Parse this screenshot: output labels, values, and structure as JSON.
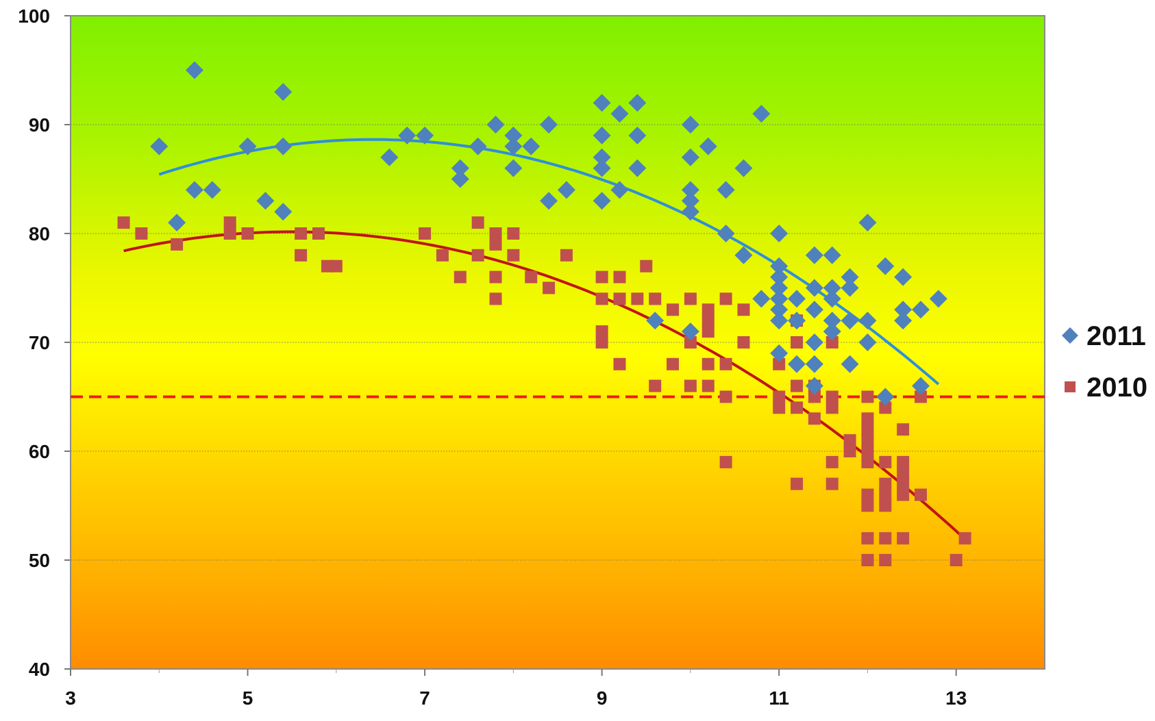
{
  "chart_data": {
    "type": "scatter",
    "title": "",
    "xlabel": "",
    "ylabel": "",
    "xlim": [
      3,
      14
    ],
    "ylim": [
      40,
      100
    ],
    "x_ticks": [
      "3",
      "5",
      "7",
      "9",
      "11",
      "13"
    ],
    "y_ticks": [
      "40",
      "50",
      "60",
      "70",
      "80",
      "90",
      "100"
    ],
    "grid": "horizontal",
    "background": "vertical gradient green (top) to yellow to orange (bottom)",
    "legend_position": "right",
    "reference_line": {
      "y": 65,
      "style": "dashed",
      "color": "#ee1c1c"
    },
    "series": [
      {
        "name": "2011",
        "marker": "diamond",
        "color": "#4f81bd",
        "trend_color": "#2f8fd8",
        "trendline": {
          "type": "polynomial",
          "order": 2,
          "x_range": [
            4,
            12.8
          ],
          "points": [
            [
              4,
              85.3
            ],
            [
              6.5,
              88.8
            ],
            [
              9,
              85.3
            ],
            [
              11,
              76.3
            ],
            [
              12.8,
              66.5
            ]
          ]
        },
        "points": [
          [
            4,
            88
          ],
          [
            4.2,
            81
          ],
          [
            4.4,
            95
          ],
          [
            4.4,
            84
          ],
          [
            4.6,
            84
          ],
          [
            5,
            88
          ],
          [
            5.2,
            83
          ],
          [
            5.4,
            93
          ],
          [
            5.4,
            88
          ],
          [
            5.4,
            82
          ],
          [
            6.6,
            87
          ],
          [
            6.8,
            89
          ],
          [
            7,
            89
          ],
          [
            7.4,
            86
          ],
          [
            7.4,
            85
          ],
          [
            7.6,
            88
          ],
          [
            7.8,
            90
          ],
          [
            8,
            89
          ],
          [
            8,
            88
          ],
          [
            8,
            86
          ],
          [
            8.2,
            88
          ],
          [
            8.4,
            90
          ],
          [
            8.4,
            83
          ],
          [
            8.6,
            84
          ],
          [
            9,
            92
          ],
          [
            9,
            89
          ],
          [
            9,
            87
          ],
          [
            9,
            86
          ],
          [
            9,
            83
          ],
          [
            9.2,
            91
          ],
          [
            9.2,
            84
          ],
          [
            9.4,
            92
          ],
          [
            9.4,
            89
          ],
          [
            9.4,
            86
          ],
          [
            9.6,
            72
          ],
          [
            10,
            90
          ],
          [
            10,
            87
          ],
          [
            10,
            84
          ],
          [
            10,
            83
          ],
          [
            10,
            82
          ],
          [
            10,
            71
          ],
          [
            10.2,
            88
          ],
          [
            10.4,
            84
          ],
          [
            10.4,
            80
          ],
          [
            10.6,
            86
          ],
          [
            10.6,
            78
          ],
          [
            10.8,
            91
          ],
          [
            10.8,
            74
          ],
          [
            11,
            80
          ],
          [
            11,
            77
          ],
          [
            11,
            76
          ],
          [
            11,
            75
          ],
          [
            11,
            74
          ],
          [
            11,
            73
          ],
          [
            11,
            72
          ],
          [
            11,
            69
          ],
          [
            11.2,
            74
          ],
          [
            11.2,
            72
          ],
          [
            11.2,
            68
          ],
          [
            11.4,
            78
          ],
          [
            11.4,
            75
          ],
          [
            11.4,
            73
          ],
          [
            11.4,
            70
          ],
          [
            11.4,
            68
          ],
          [
            11.4,
            66
          ],
          [
            11.6,
            78
          ],
          [
            11.6,
            75
          ],
          [
            11.6,
            74
          ],
          [
            11.6,
            72
          ],
          [
            11.6,
            71
          ],
          [
            11.8,
            76
          ],
          [
            11.8,
            75
          ],
          [
            11.8,
            72
          ],
          [
            11.8,
            68
          ],
          [
            12,
            81
          ],
          [
            12,
            72
          ],
          [
            12,
            70
          ],
          [
            12.2,
            77
          ],
          [
            12.2,
            65
          ],
          [
            12.4,
            76
          ],
          [
            12.4,
            73
          ],
          [
            12.4,
            72
          ],
          [
            12.6,
            73
          ],
          [
            12.6,
            66
          ],
          [
            12.8,
            74
          ]
        ]
      },
      {
        "name": "2010",
        "marker": "square",
        "color": "#c0504d",
        "trend_color": "#c0141c",
        "trendline": {
          "type": "polynomial",
          "order": 2,
          "x_range": [
            3.6,
            13.1
          ],
          "points": [
            [
              3.6,
              78.4
            ],
            [
              5.5,
              80.1
            ],
            [
              8,
              77.3
            ],
            [
              10,
              70.1
            ],
            [
              11.5,
              62.5
            ],
            [
              13.1,
              52
            ]
          ]
        },
        "points": [
          [
            3.6,
            81
          ],
          [
            3.8,
            80
          ],
          [
            4.2,
            79
          ],
          [
            4.8,
            81
          ],
          [
            4.8,
            80
          ],
          [
            5,
            80
          ],
          [
            5.6,
            80
          ],
          [
            5.6,
            78
          ],
          [
            5.8,
            80
          ],
          [
            5.9,
            77
          ],
          [
            6,
            77
          ],
          [
            7,
            80
          ],
          [
            7.2,
            78
          ],
          [
            7.4,
            76
          ],
          [
            7.6,
            81
          ],
          [
            7.6,
            78
          ],
          [
            7.8,
            80
          ],
          [
            7.8,
            79
          ],
          [
            7.8,
            76
          ],
          [
            7.8,
            74
          ],
          [
            8,
            80
          ],
          [
            8,
            78
          ],
          [
            8.2,
            76
          ],
          [
            8.4,
            75
          ],
          [
            8.6,
            78
          ],
          [
            9,
            76
          ],
          [
            9,
            74
          ],
          [
            9,
            71
          ],
          [
            9,
            70
          ],
          [
            9.2,
            76
          ],
          [
            9.2,
            74
          ],
          [
            9.2,
            68
          ],
          [
            9.4,
            74
          ],
          [
            9.5,
            77
          ],
          [
            9.6,
            74
          ],
          [
            9.6,
            66
          ],
          [
            9.8,
            73
          ],
          [
            9.8,
            68
          ],
          [
            10,
            74
          ],
          [
            10,
            70
          ],
          [
            10,
            66
          ],
          [
            10.2,
            73
          ],
          [
            10.2,
            72
          ],
          [
            10.2,
            71
          ],
          [
            10.2,
            68
          ],
          [
            10.2,
            66
          ],
          [
            10.4,
            74
          ],
          [
            10.4,
            68
          ],
          [
            10.4,
            65
          ],
          [
            10.4,
            59
          ],
          [
            10.6,
            73
          ],
          [
            10.6,
            70
          ],
          [
            11,
            68
          ],
          [
            11,
            65
          ],
          [
            11,
            64
          ],
          [
            11.2,
            72
          ],
          [
            11.2,
            70
          ],
          [
            11.2,
            66
          ],
          [
            11.2,
            64
          ],
          [
            11.2,
            57
          ],
          [
            11.4,
            66
          ],
          [
            11.4,
            65
          ],
          [
            11.4,
            63
          ],
          [
            11.6,
            70
          ],
          [
            11.6,
            65
          ],
          [
            11.6,
            64
          ],
          [
            11.6,
            59
          ],
          [
            11.6,
            57
          ],
          [
            11.8,
            61
          ],
          [
            11.8,
            60
          ],
          [
            12,
            65
          ],
          [
            12,
            63
          ],
          [
            12,
            62
          ],
          [
            12,
            61
          ],
          [
            12,
            60
          ],
          [
            12,
            59
          ],
          [
            12,
            56
          ],
          [
            12,
            55
          ],
          [
            12,
            52
          ],
          [
            12,
            50
          ],
          [
            12.2,
            64
          ],
          [
            12.2,
            59
          ],
          [
            12.2,
            57
          ],
          [
            12.2,
            56
          ],
          [
            12.2,
            55
          ],
          [
            12.2,
            52
          ],
          [
            12.2,
            50
          ],
          [
            12.4,
            62
          ],
          [
            12.4,
            59
          ],
          [
            12.4,
            58
          ],
          [
            12.4,
            57
          ],
          [
            12.4,
            56
          ],
          [
            12.4,
            52
          ],
          [
            12.6,
            65
          ],
          [
            12.6,
            56
          ],
          [
            13,
            50
          ],
          [
            13.1,
            52
          ]
        ]
      }
    ]
  }
}
